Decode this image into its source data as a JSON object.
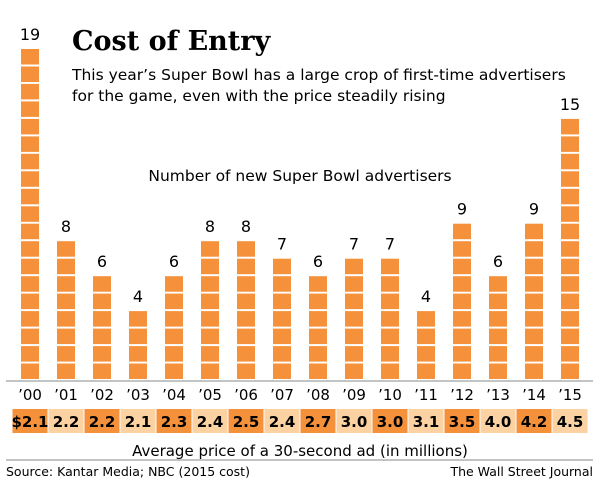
{
  "title": "Cost of Entry",
  "subtitle_lines": [
    "This year’s Super Bowl has a large crop of first-time advertisers",
    "for the game, even with the price steadily rising"
  ],
  "source": "Source: Kantar Media; NBC (2015 cost)",
  "credit": "The Wall Street Journal",
  "colors": {
    "bar": "#f5913a",
    "price_light": "#fcd2a3",
    "price_dark": "#f5913a",
    "text": "#1a1a1a"
  },
  "chart_data": {
    "type": "bar",
    "title": "Number of new Super Bowl advertisers",
    "categories": [
      "’00",
      "’01",
      "’02",
      "’03",
      "’04",
      "’05",
      "’06",
      "’07",
      "’08",
      "’09",
      "’10",
      "’11",
      "’12",
      "’13",
      "’14",
      "’15"
    ],
    "values": [
      19,
      8,
      6,
      4,
      6,
      8,
      8,
      7,
      6,
      7,
      7,
      4,
      9,
      6,
      9,
      15
    ],
    "ylim": [
      0,
      19
    ],
    "secondary_row": {
      "label": "Average price of a 30-second ad (in millions)",
      "display": [
        "$2.1",
        "2.2",
        "2.2",
        "2.1",
        "2.3",
        "2.4",
        "2.5",
        "2.4",
        "2.7",
        "3.0",
        "3.0",
        "3.1",
        "3.5",
        "4.0",
        "4.2",
        "4.5"
      ],
      "values": [
        2.1,
        2.2,
        2.2,
        2.1,
        2.3,
        2.4,
        2.5,
        2.4,
        2.7,
        3.0,
        3.0,
        3.1,
        3.5,
        4.0,
        4.2,
        4.5
      ]
    }
  }
}
